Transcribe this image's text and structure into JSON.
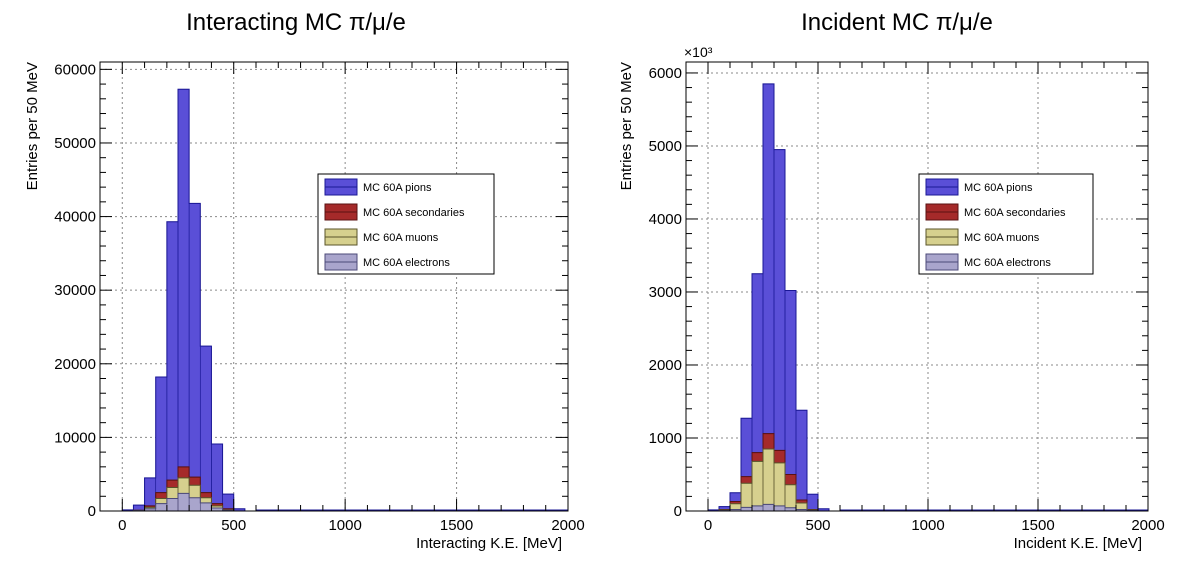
{
  "colors": {
    "pions": "#5a4fd7",
    "pions_edge": "#1b1896",
    "secondaries": "#a52a2a",
    "secondaries_edge": "#5a1212",
    "muons": "#d6d08e",
    "muons_edge": "#59542a",
    "electrons": "#a9a5cc",
    "electrons_edge": "#4c4a78",
    "grid": "#8a8a8a"
  },
  "chart_data": [
    {
      "type": "histogram",
      "stacked": false,
      "title": "Interacting MC π/μ/e",
      "xlabel": "Interacting K.E. [MeV]",
      "ylabel": "Entries per 50 MeV",
      "xlim": [
        -100,
        2000
      ],
      "ylim": [
        0,
        61000
      ],
      "x_ticks": [
        0,
        500,
        1000,
        1500,
        2000
      ],
      "y_ticks": [
        0,
        10000,
        20000,
        30000,
        40000,
        50000,
        60000
      ],
      "y_tick_labels": [
        "0",
        "10000",
        "20000",
        "30000",
        "40000",
        "50000",
        "60000"
      ],
      "exponent_label": "",
      "grid": true,
      "legend_position": "upper-right",
      "bin_edges": [
        0,
        50,
        100,
        150,
        200,
        250,
        300,
        350,
        400,
        450,
        500,
        550,
        600
      ],
      "series": [
        {
          "name": "MC 60A pions",
          "key": "pions",
          "values": [
            150,
            800,
            4500,
            18200,
            39300,
            57300,
            41800,
            22400,
            9100,
            2300,
            300,
            0
          ]
        },
        {
          "name": "MC 60A secondaries",
          "key": "secondaries",
          "values": [
            0,
            100,
            700,
            2500,
            4200,
            6000,
            4600,
            2500,
            1000,
            300,
            0,
            0
          ]
        },
        {
          "name": "MC 60A muons",
          "key": "muons",
          "values": [
            0,
            80,
            500,
            1700,
            3200,
            4500,
            3500,
            1800,
            700,
            150,
            0,
            0
          ]
        },
        {
          "name": "MC 60A electrons",
          "key": "electrons",
          "values": [
            0,
            50,
            300,
            1000,
            1700,
            2400,
            1800,
            1100,
            400,
            100,
            0,
            0
          ]
        }
      ]
    },
    {
      "type": "histogram",
      "stacked": false,
      "title": "Incident MC π/μ/e",
      "xlabel": "Incident K.E. [MeV]",
      "ylabel": "Entries per 50 MeV",
      "xlim": [
        -100,
        2000
      ],
      "ylim": [
        0,
        6150
      ],
      "x_ticks": [
        0,
        500,
        1000,
        1500,
        2000
      ],
      "y_ticks": [
        0,
        1000,
        2000,
        3000,
        4000,
        5000,
        6000
      ],
      "y_tick_labels": [
        "0",
        "1000",
        "2000",
        "3000",
        "4000",
        "5000",
        "6000"
      ],
      "exponent_label": "×10³",
      "grid": true,
      "legend_position": "upper-right",
      "bin_edges": [
        0,
        50,
        100,
        150,
        200,
        250,
        300,
        350,
        400,
        450,
        500,
        550,
        600
      ],
      "series": [
        {
          "name": "MC 60A pions",
          "key": "pions",
          "values": [
            15,
            60,
            250,
            1270,
            3250,
            5850,
            4950,
            3020,
            1380,
            230,
            30,
            0
          ]
        },
        {
          "name": "MC 60A secondaries",
          "key": "secondaries",
          "values": [
            0,
            20,
            130,
            470,
            800,
            1060,
            830,
            500,
            150,
            20,
            0,
            0
          ]
        },
        {
          "name": "MC 60A muons",
          "key": "muons",
          "values": [
            0,
            15,
            100,
            380,
            680,
            850,
            660,
            360,
            110,
            15,
            0,
            0
          ]
        },
        {
          "name": "MC 60A electrons",
          "key": "electrons",
          "values": [
            0,
            5,
            20,
            50,
            70,
            90,
            70,
            45,
            20,
            5,
            0,
            0
          ]
        }
      ]
    }
  ]
}
